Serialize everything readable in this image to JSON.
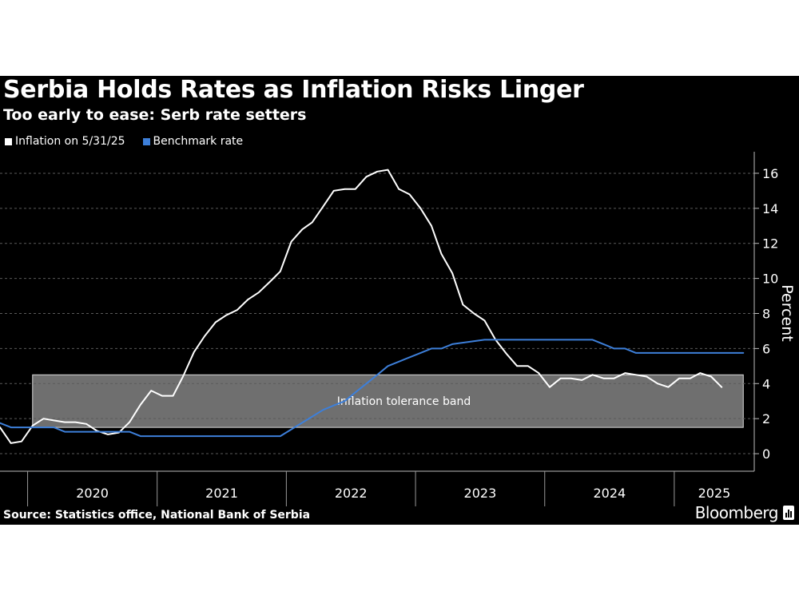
{
  "header": {
    "title": "Serbia Holds Rates as Inflation Risks Linger",
    "subtitle": "Too early to ease: Serb rate setters"
  },
  "footer": {
    "source": "Source: Statistics office, National Bank of Serbia",
    "brand": "Bloomberg"
  },
  "colors": {
    "background": "#000000",
    "inflation": "#ffffff",
    "benchmark": "#3d7fd9",
    "band": "#9a9a9a",
    "grid": "#5a5a5a"
  },
  "chart_data": {
    "type": "line",
    "title": "Serbia Holds Rates as Inflation Risks Linger",
    "subtitle": "Too early to ease: Serb rate setters",
    "ylabel": "Percent",
    "ylim": [
      -1,
      17
    ],
    "yticks": [
      0,
      2,
      4,
      6,
      8,
      10,
      12,
      14,
      16
    ],
    "y_axis_side": "right",
    "grid": "horizontal dashed",
    "legend_position": "top-left",
    "xlim": [
      "2019-10-15",
      "2025-08-15"
    ],
    "x_year_labels": [
      "2020",
      "2021",
      "2022",
      "2023",
      "2024",
      "2025"
    ],
    "annotation": {
      "label": "Inflation tolerance band",
      "y_range": [
        1.5,
        4.5
      ],
      "x_range": [
        "2020-01",
        "2025-07"
      ]
    },
    "series": [
      {
        "name": "Inflation on 5/31/25",
        "color": "#ffffff",
        "x": [
          "2019-10",
          "2019-11",
          "2019-12",
          "2020-01",
          "2020-02",
          "2020-03",
          "2020-04",
          "2020-05",
          "2020-06",
          "2020-07",
          "2020-08",
          "2020-09",
          "2020-10",
          "2020-11",
          "2020-12",
          "2021-01",
          "2021-02",
          "2021-03",
          "2021-04",
          "2021-05",
          "2021-06",
          "2021-07",
          "2021-08",
          "2021-09",
          "2021-10",
          "2021-11",
          "2021-12",
          "2022-01",
          "2022-02",
          "2022-03",
          "2022-04",
          "2022-05",
          "2022-06",
          "2022-07",
          "2022-08",
          "2022-09",
          "2022-10",
          "2022-11",
          "2022-12",
          "2023-01",
          "2023-02",
          "2023-03",
          "2023-04",
          "2023-05",
          "2023-06",
          "2023-07",
          "2023-08",
          "2023-09",
          "2023-10",
          "2023-11",
          "2023-12",
          "2024-01",
          "2024-02",
          "2024-03",
          "2024-04",
          "2024-05",
          "2024-06",
          "2024-07",
          "2024-08",
          "2024-09",
          "2024-10",
          "2024-11",
          "2024-12",
          "2025-01",
          "2025-02",
          "2025-03",
          "2025-04",
          "2025-05"
        ],
        "values": [
          1.5,
          0.6,
          0.7,
          1.6,
          2.0,
          1.9,
          1.8,
          1.8,
          1.7,
          1.3,
          1.1,
          1.2,
          1.8,
          2.8,
          3.6,
          3.3,
          3.3,
          4.4,
          5.8,
          6.7,
          7.5,
          7.9,
          8.2,
          8.8,
          9.2,
          9.8,
          10.4,
          12.1,
          12.8,
          13.2,
          14.1,
          15.0,
          15.1,
          15.1,
          15.8,
          16.1,
          16.2,
          15.1,
          14.8,
          14.0,
          13.0,
          11.4,
          10.3,
          8.5,
          8.0,
          7.6,
          6.5,
          5.7,
          5.0,
          5.0,
          4.6,
          3.8,
          4.3,
          4.3,
          4.2,
          4.5,
          4.3,
          4.3,
          4.6,
          4.5,
          4.4,
          4.0,
          3.8,
          4.3,
          4.3,
          4.6,
          4.4,
          3.8
        ],
        "values_note": "",
        "x_note": ""
      },
      {
        "name": "Benchmark rate",
        "color": "#3d7fd9",
        "x": [
          "2019-10-15",
          "2019-11-15",
          "2020-03-15",
          "2020-04-15",
          "2020-10-15",
          "2020-11-15",
          "2021-11-15",
          "2021-12-15",
          "2022-04-15",
          "2022-05-15",
          "2022-06-15",
          "2022-07-15",
          "2022-08-15",
          "2022-09-15",
          "2022-10-15",
          "2022-11-15",
          "2022-12-15",
          "2023-01-15",
          "2023-02-15",
          "2023-03-15",
          "2023-04-15",
          "2023-07-15",
          "2024-05-15",
          "2024-06-15",
          "2024-07-15",
          "2024-08-15",
          "2024-09-15",
          "2025-07-15"
        ],
        "values": [
          1.75,
          1.5,
          1.5,
          1.25,
          1.25,
          1.0,
          1.0,
          1.0,
          2.5,
          2.75,
          3.0,
          3.5,
          4.0,
          4.5,
          5.0,
          5.25,
          5.5,
          5.75,
          6.0,
          6.0,
          6.25,
          6.5,
          6.5,
          6.25,
          6.0,
          6.0,
          5.75,
          5.75
        ]
      }
    ]
  }
}
